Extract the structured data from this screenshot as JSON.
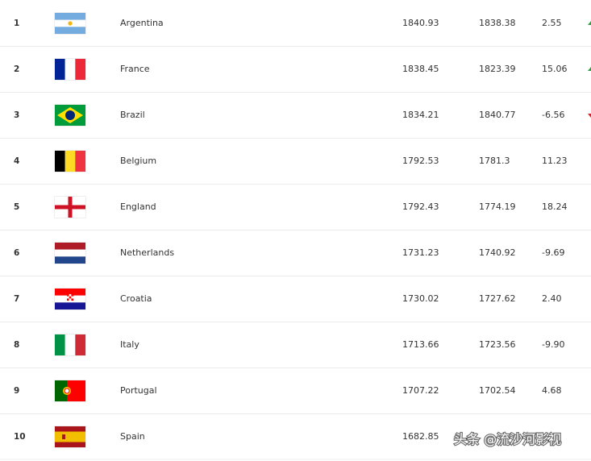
{
  "table": {
    "rows": [
      [
        "1",
        "Argentina",
        "1840.93",
        "1838.38",
        "2.55"
      ],
      [
        "2",
        "France",
        "1838.45",
        "1823.39",
        "15.06"
      ],
      [
        "3",
        "Brazil",
        "1834.21",
        "1840.77",
        "-6.56"
      ],
      [
        "4",
        "Belgium",
        "1792.53",
        "1781.3",
        "11.23"
      ],
      [
        "5",
        "England",
        "1792.43",
        "1774.19",
        "18.24"
      ],
      [
        "6",
        "Netherlands",
        "1731.23",
        "1740.92",
        "-9.69"
      ],
      [
        "7",
        "Croatia",
        "1730.02",
        "1727.62",
        "2.40"
      ],
      [
        "8",
        "Italy",
        "1713.66",
        "1723.56",
        "-9.90"
      ],
      [
        "9",
        "Portugal",
        "1707.22",
        "1702.54",
        "4.68"
      ],
      [
        "10",
        "Spain",
        "1682.85"
      ]
    ]
  },
  "watermark": "头条 @流沙河影视"
}
